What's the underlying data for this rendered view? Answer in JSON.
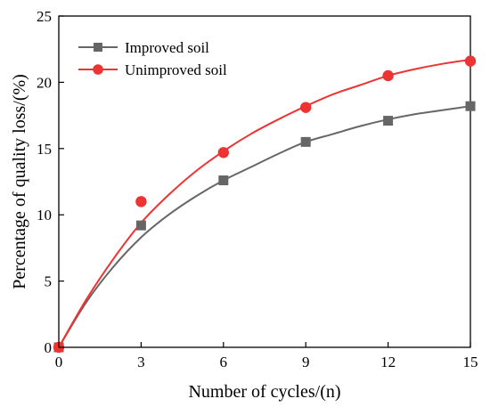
{
  "chart_data": {
    "type": "line",
    "xlabel": "Number of cycles/(n)",
    "ylabel": "Percentage of quality loss/(%)",
    "xlim": [
      0,
      15
    ],
    "ylim": [
      0,
      25
    ],
    "xticks": [
      0,
      3,
      6,
      9,
      12,
      15
    ],
    "yticks": [
      0,
      5,
      10,
      15,
      20,
      25
    ],
    "grid": false,
    "legend_position": "top-left",
    "series": [
      {
        "name": "Improved soil",
        "color": "#666666",
        "marker": "square",
        "x": [
          0,
          3,
          6,
          9,
          12,
          15
        ],
        "y": [
          0,
          9.2,
          12.6,
          15.5,
          17.1,
          18.2
        ],
        "fit_x": [
          0,
          1,
          2,
          3,
          4,
          5,
          6,
          7,
          8,
          9,
          10,
          11,
          12,
          13,
          14,
          15
        ],
        "fit_y": [
          0,
          3.4,
          6.1,
          8.3,
          10.0,
          11.4,
          12.6,
          13.6,
          14.6,
          15.5,
          16.1,
          16.7,
          17.2,
          17.6,
          17.9,
          18.2
        ]
      },
      {
        "name": "Unimproved soil",
        "color": "#ee3333",
        "marker": "circle",
        "x": [
          0,
          3,
          6,
          9,
          12,
          15
        ],
        "y": [
          0,
          11.0,
          14.7,
          18.1,
          20.5,
          21.6
        ],
        "fit_x": [
          0,
          1,
          2,
          3,
          4,
          5,
          6,
          7,
          8,
          9,
          10,
          11,
          12,
          13,
          14,
          15
        ],
        "fit_y": [
          0,
          3.6,
          6.7,
          9.4,
          11.5,
          13.3,
          14.8,
          16.1,
          17.2,
          18.2,
          19.1,
          19.8,
          20.5,
          21.0,
          21.4,
          21.7
        ]
      }
    ]
  }
}
